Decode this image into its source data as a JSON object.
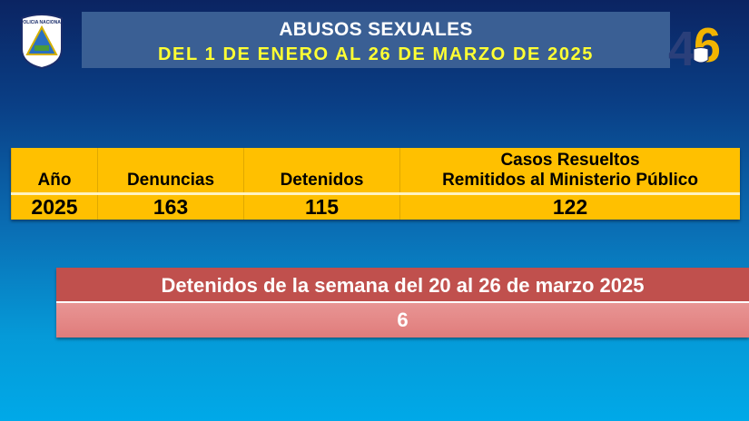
{
  "header": {
    "title": "ABUSOS SEXUALES",
    "subtitle": "DEL 1 DE ENERO AL 26 DE MARZO DE 2025",
    "logo_left_text": "POLICIA NACIONAL",
    "logo_right_text": "46"
  },
  "table": {
    "columns": [
      "Año",
      "Denuncias",
      "Detenidos",
      "Casos Resueltos Remitidos al Ministerio Público"
    ],
    "col3_line1": "Casos Resueltos",
    "col3_line2": "Remitidos al Ministerio Público",
    "rows": [
      [
        "2025",
        "163",
        "115",
        "122"
      ]
    ]
  },
  "weekly": {
    "label": "Detenidos de la semana del 20 al 26 de marzo 2025",
    "value": "6"
  },
  "colors": {
    "table": "#ffc000",
    "weekly_header": "#c0504d",
    "weekly_value": "#e48a89",
    "title_box": "#3a5f94",
    "subtitle": "#ffff33"
  }
}
